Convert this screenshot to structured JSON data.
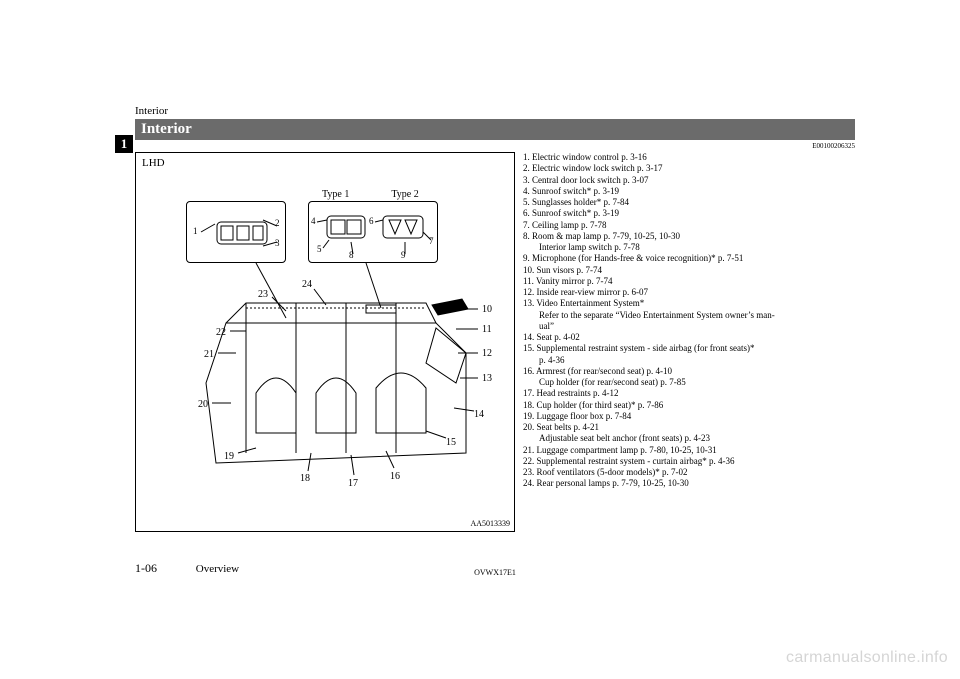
{
  "running_head": "Interior",
  "title": "Interior",
  "doc_code": "E00100206325",
  "chapter_tab": "1",
  "figure": {
    "lhd": "LHD",
    "code": "AA5013339",
    "type1": "Type 1",
    "type2": "Type 2",
    "inset1": {
      "n1": "1",
      "n2": "2",
      "n3": "3"
    },
    "inset2": {
      "n4": "4",
      "n5": "5",
      "n6": "6",
      "n7": "7",
      "n8": "8",
      "n9": "9"
    },
    "callouts": [
      "10",
      "11",
      "12",
      "13",
      "14",
      "15",
      "16",
      "17",
      "18",
      "19",
      "20",
      "21",
      "22",
      "23",
      "24"
    ]
  },
  "list": [
    "1. Electric window control p. 3-16",
    "2. Electric window lock switch p. 3-17",
    "3. Central door lock switch p. 3-07",
    "4. Sunroof switch* p. 3-19",
    "5. Sunglasses holder* p. 7-84",
    "6. Sunroof switch* p. 3-19",
    "7. Ceiling lamp p. 7-78",
    "8. Room & map lamp p. 7-79, 10-25, 10-30",
    "   Interior lamp switch p. 7-78",
    "9. Microphone (for Hands-free & voice recognition)* p. 7-51",
    "10. Sun visors p. 7-74",
    "11. Vanity mirror p. 7-74",
    "12. Inside rear-view mirror p. 6-07",
    "13. Video Entertainment System*",
    "   Refer to the separate “Video Entertainment System owner’s man-",
    "   ual”",
    "14. Seat p. 4-02",
    "15. Supplemental restraint system - side airbag (for front seats)*",
    "   p. 4-36",
    "16. Armrest (for rear/second seat) p. 4-10",
    "   Cup holder (for rear/second seat) p. 7-85",
    "17. Head restraints p. 4-12",
    "18. Cup holder (for third seat)* p. 7-86",
    "19. Luggage floor box p. 7-84",
    "20. Seat belts p. 4-21",
    "   Adjustable seat belt anchor (front seats) p. 4-23",
    "21. Luggage compartment lamp p. 7-80, 10-25, 10-31",
    "22. Supplemental restraint system - curtain airbag* p. 4-36",
    "23. Roof ventilators (5-door models)* p. 7-02",
    "24. Rear personal lamps p. 7-79, 10-25, 10-30"
  ],
  "footer": {
    "page_num": "1-06",
    "section": "Overview",
    "book_code": "OVWX17E1"
  },
  "watermark": "carmanualsonline.info"
}
